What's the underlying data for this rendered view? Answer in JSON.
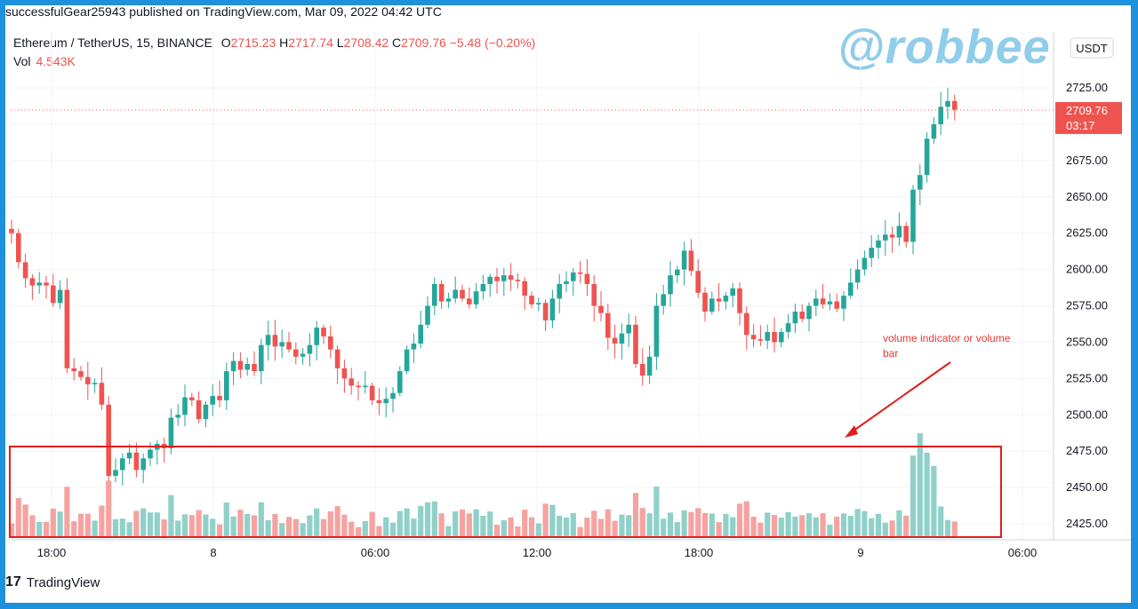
{
  "header": {
    "published": "successfulGear25943 published on TradingView.com, Mar 09, 2022 04:42 UTC",
    "symbol": "Ethereum / TetherUS, 15, BINANCE",
    "open_key": "O",
    "open": "2715.23",
    "high_key": "H",
    "high": "2717.74",
    "low_key": "L",
    "low": "2708.42",
    "close_key": "C",
    "close": "2709.76",
    "change": "−5.48 (−0.20%)",
    "vol_label": "Vol",
    "vol_value": "4.543K"
  },
  "watermark": "@robbee",
  "footer": {
    "logo": "17",
    "brand": "TradingView"
  },
  "colors": {
    "up": "#26a69a",
    "down": "#ef5350",
    "up_vol": "#8fd1c8",
    "down_vol": "#f5a3a1",
    "annotation": "#e53935"
  },
  "annotation": {
    "line1": "volume indicator or volume",
    "line2": "bar"
  },
  "chart_data": {
    "type": "candlestick",
    "currency_label": "USDT",
    "last_price_label": "2709.76",
    "countdown_label": "03:17",
    "y_ticks": [
      "2725.00",
      "2700.00",
      "2675.00",
      "2650.00",
      "2625.00",
      "2600.00",
      "2575.00",
      "2550.00",
      "2525.00",
      "2500.00",
      "2475.00",
      "2450.00",
      "2425.00"
    ],
    "x_ticks": [
      "18:00",
      "8",
      "06:00",
      "12:00",
      "18:00",
      "9",
      "06:00"
    ],
    "close": [
      2625,
      2605,
      2594,
      2589,
      2591,
      2589,
      2577,
      2586,
      2532,
      2530,
      2526,
      2521,
      2522,
      2507,
      2458,
      2462,
      2470,
      2474,
      2462,
      2470,
      2476,
      2480,
      2477,
      2498,
      2500,
      2512,
      2510,
      2497,
      2507,
      2513,
      2510,
      2530,
      2537,
      2531,
      2535,
      2530,
      2548,
      2555,
      2547,
      2550,
      2545,
      2540,
      2542,
      2548,
      2560,
      2554,
      2545,
      2532,
      2525,
      2520,
      2519,
      2520,
      2510,
      2508,
      2511,
      2515,
      2530,
      2545,
      2549,
      2562,
      2575,
      2590,
      2578,
      2580,
      2586,
      2580,
      2576,
      2585,
      2590,
      2595,
      2592,
      2596,
      2593,
      2592,
      2582,
      2576,
      2577,
      2565,
      2580,
      2590,
      2592,
      2598,
      2597,
      2590,
      2575,
      2570,
      2553,
      2549,
      2556,
      2562,
      2535,
      2527,
      2540,
      2575,
      2583,
      2596,
      2600,
      2613,
      2599,
      2584,
      2571,
      2580,
      2578,
      2582,
      2587,
      2570,
      2555,
      2552,
      2551,
      2557,
      2550,
      2557,
      2563,
      2571,
      2566,
      2575,
      2580,
      2576,
      2578,
      2573,
      2582,
      2591,
      2600,
      2608,
      2615,
      2620,
      2624,
      2622,
      2630,
      2619,
      2655,
      2665,
      2690,
      2700,
      2712,
      2716,
      2710
    ]
  }
}
